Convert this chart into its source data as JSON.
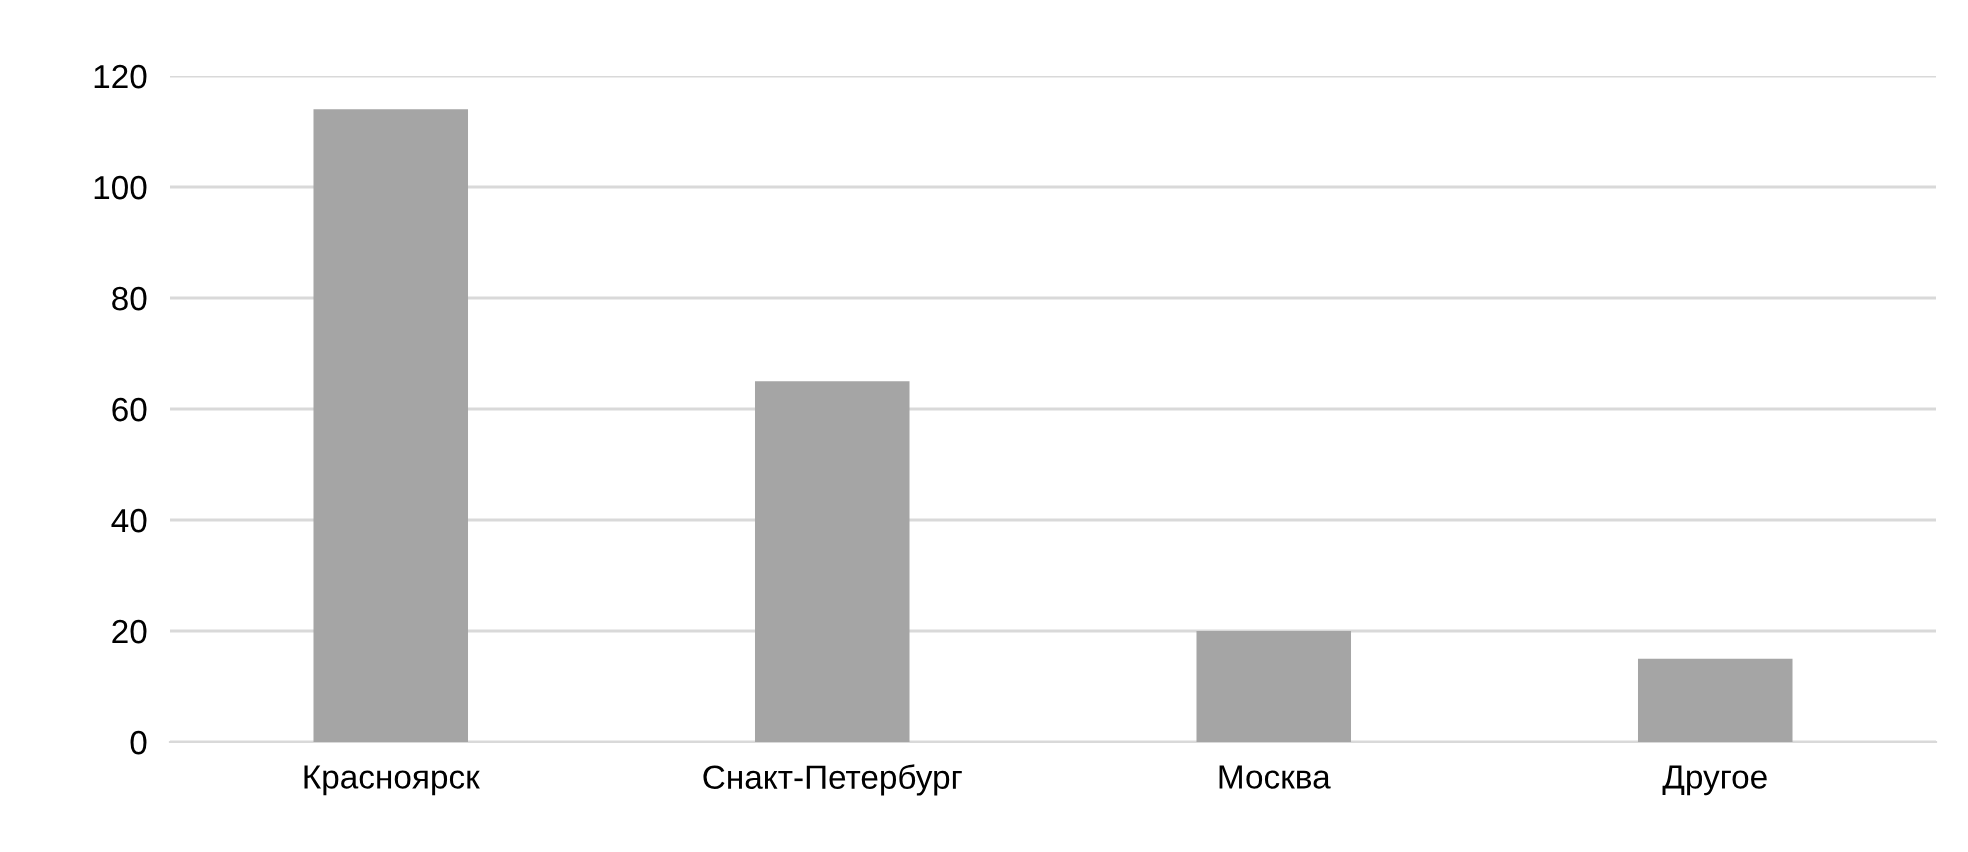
{
  "chart_data": {
    "type": "bar",
    "categories": [
      "Красноярск",
      "Снакт-Петербург",
      "Москва",
      "Другое"
    ],
    "values": [
      114,
      65,
      20,
      15
    ],
    "color": "#a5a5a5",
    "ylim": [
      0,
      120
    ],
    "yticks": [
      0,
      20,
      40,
      60,
      80,
      100,
      120
    ],
    "grid": "y",
    "legend": false
  }
}
